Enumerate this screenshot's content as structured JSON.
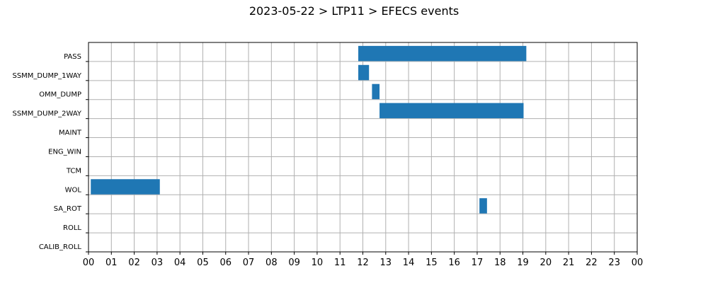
{
  "chart_data": {
    "type": "bar",
    "orientation": "horizontal",
    "title": "2023-05-22 > LTP11 > EFECS events",
    "xlabel": "",
    "ylabel": "",
    "categories": [
      "PASS",
      "SSMM_DUMP_1WAY",
      "OMM_DUMP",
      "SSMM_DUMP_2WAY",
      "MAINT",
      "ENG_WIN",
      "TCM",
      "WOL",
      "SA_ROT",
      "ROLL",
      "CALIB_ROLL"
    ],
    "xlim": [
      0,
      24
    ],
    "x_tick_labels": [
      "00",
      "01",
      "02",
      "03",
      "04",
      "05",
      "06",
      "07",
      "08",
      "09",
      "10",
      "11",
      "12",
      "13",
      "14",
      "15",
      "16",
      "17",
      "18",
      "19",
      "20",
      "21",
      "22",
      "23",
      "00"
    ],
    "grid": true,
    "bar_color": "#1f77b4",
    "series": [
      {
        "events": [
          {
            "category": "PASS",
            "start": 11.8,
            "end": 19.15
          },
          {
            "category": "SSMM_DUMP_1WAY",
            "start": 11.8,
            "end": 12.27
          },
          {
            "category": "OMM_DUMP",
            "start": 12.4,
            "end": 12.73
          },
          {
            "category": "SSMM_DUMP_2WAY",
            "start": 12.73,
            "end": 19.03
          },
          {
            "category": "WOL",
            "start": 0.1,
            "end": 3.12
          },
          {
            "category": "SA_ROT",
            "start": 17.1,
            "end": 17.43
          }
        ]
      }
    ]
  }
}
